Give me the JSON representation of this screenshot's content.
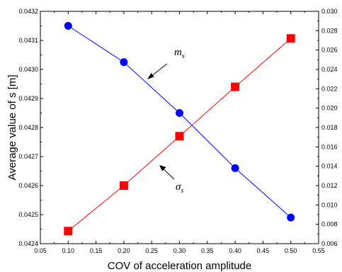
{
  "chart_data": {
    "type": "line",
    "title": "",
    "xlabel": "COV of acceleration amplitude",
    "ylabel": "Average value of s [m]",
    "xlim": [
      0.05,
      0.55
    ],
    "x_ticks": [
      "0.05",
      "0.10",
      "0.15",
      "0.20",
      "0.25",
      "0.30",
      "0.35",
      "0.40",
      "0.45",
      "0.50",
      "0.55"
    ],
    "ylim_left": [
      0.0424,
      0.0432
    ],
    "y_ticks_left": [
      "0.0424",
      "0.0425",
      "0.0426",
      "0.0427",
      "0.0428",
      "0.0429",
      "0.0430",
      "0.0431",
      "0.0432"
    ],
    "ylim_right": [
      0.006,
      0.03
    ],
    "y_ticks_right": [
      "0.006",
      "0.008",
      "0.010",
      "0.012",
      "0.014",
      "0.016",
      "0.018",
      "0.020",
      "0.022",
      "0.024",
      "0.026",
      "0.028",
      "0.030"
    ],
    "grid": false,
    "series": [
      {
        "name": "m",
        "name_sub": "s",
        "axis": "left",
        "color": "#0000ff",
        "marker": "circle",
        "x": [
          0.1,
          0.2,
          0.3,
          0.4,
          0.5
        ],
        "y": [
          0.04315,
          0.043025,
          0.04285,
          0.04266,
          0.04249
        ]
      },
      {
        "name": "σ",
        "name_sub": "s",
        "axis": "right",
        "color": "#ff0000",
        "marker": "square",
        "x": [
          0.1,
          0.2,
          0.3,
          0.4,
          0.5
        ],
        "y": [
          0.0073,
          0.012,
          0.0171,
          0.0222,
          0.0272
        ]
      }
    ]
  }
}
